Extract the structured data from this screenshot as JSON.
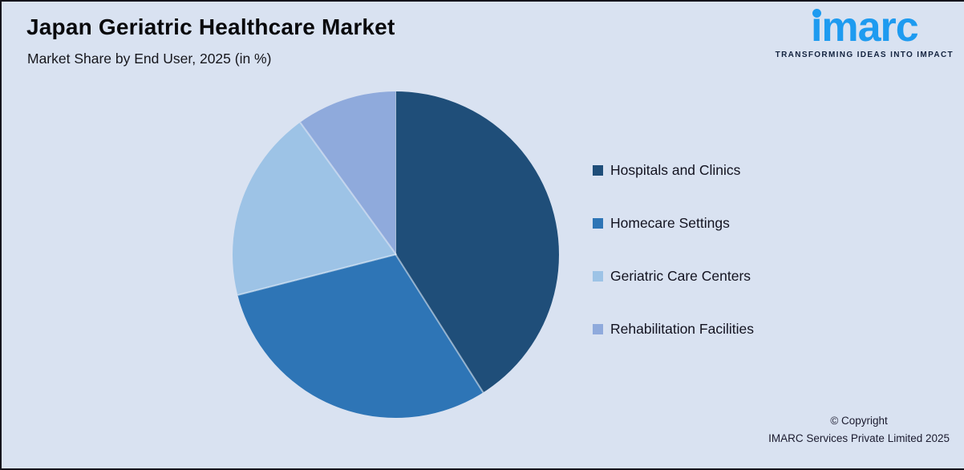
{
  "page": {
    "title": "Japan Geriatric Healthcare Market",
    "subtitle": "Market Share by End User, 2025 (in %)",
    "background_color": "#d9e2f1",
    "border_color": "#14141c"
  },
  "logo": {
    "brand": "imarc",
    "brand_display": "ımarc",
    "tagline": "TRANSFORMING IDEAS INTO IMPACT",
    "brand_color": "#1e9bf0",
    "tagline_color": "#13233f"
  },
  "chart_data": {
    "type": "pie",
    "title": "Japan Geriatric Healthcare Market",
    "subtitle": "Market Share by End User, 2025 (in %)",
    "unit": "%",
    "categories": [
      "Hospitals and Clinics",
      "Homecare Settings",
      "Geriatric Care Centers",
      "Rehabilitation Facilities"
    ],
    "values": [
      41,
      30,
      19,
      10
    ],
    "colors": [
      "#1f4e79",
      "#2e75b6",
      "#9dc3e6",
      "#8faadc"
    ],
    "start_angle_deg": 0,
    "direction": "clockwise",
    "legend_position": "right",
    "data_labels": false
  },
  "legend": {
    "items": [
      {
        "label": "Hospitals and Clinics",
        "color": "#1f4e79"
      },
      {
        "label": "Homecare Settings",
        "color": "#2e75b6"
      },
      {
        "label": "Geriatric Care Centers",
        "color": "#9dc3e6"
      },
      {
        "label": "Rehabilitation Facilities",
        "color": "#8faadc"
      }
    ]
  },
  "footer": {
    "copyright_line1": "© Copyright",
    "copyright_line2": "IMARC Services Private Limited 2025"
  }
}
